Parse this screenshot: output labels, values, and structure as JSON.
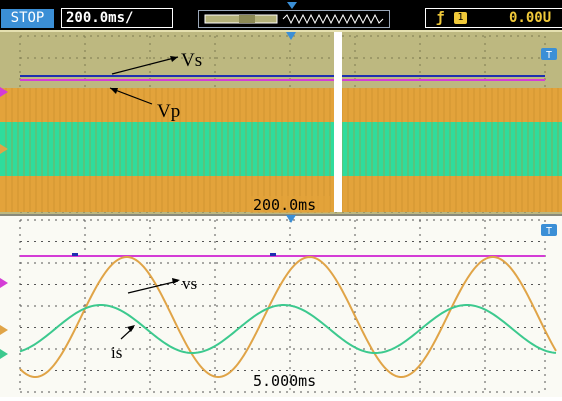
{
  "status_bar": {
    "run_state": "STOP",
    "timebase": "200.0ms/",
    "trigger_level": "0.00U",
    "trigger_channel": "1",
    "trigger_edge_icon": "rising-edge-icon"
  },
  "top_panel": {
    "time_label": "200.0ms",
    "annotation_vs": "Vs",
    "annotation_vp": "Vp",
    "badge": "T"
  },
  "bottom_panel": {
    "time_label": "5.000ms",
    "annotation_vs": "vs",
    "annotation_is": "is",
    "badge": "T"
  },
  "colors": {
    "status_background": "#000000",
    "stop_badge": "#3b8fd6",
    "trigger_text": "#f0c93a",
    "top_background": "#bdb880",
    "top_orange_band": "#e3a33b",
    "top_green_band": "#2fdc9c",
    "bottom_background": "#fafaf4",
    "trace_orange": "#e0a447",
    "trace_green": "#3cc98e",
    "trace_magenta": "#d43cd6",
    "trace_blue": "#1e2fb0",
    "marker_blue": "#3b8fd6"
  }
}
